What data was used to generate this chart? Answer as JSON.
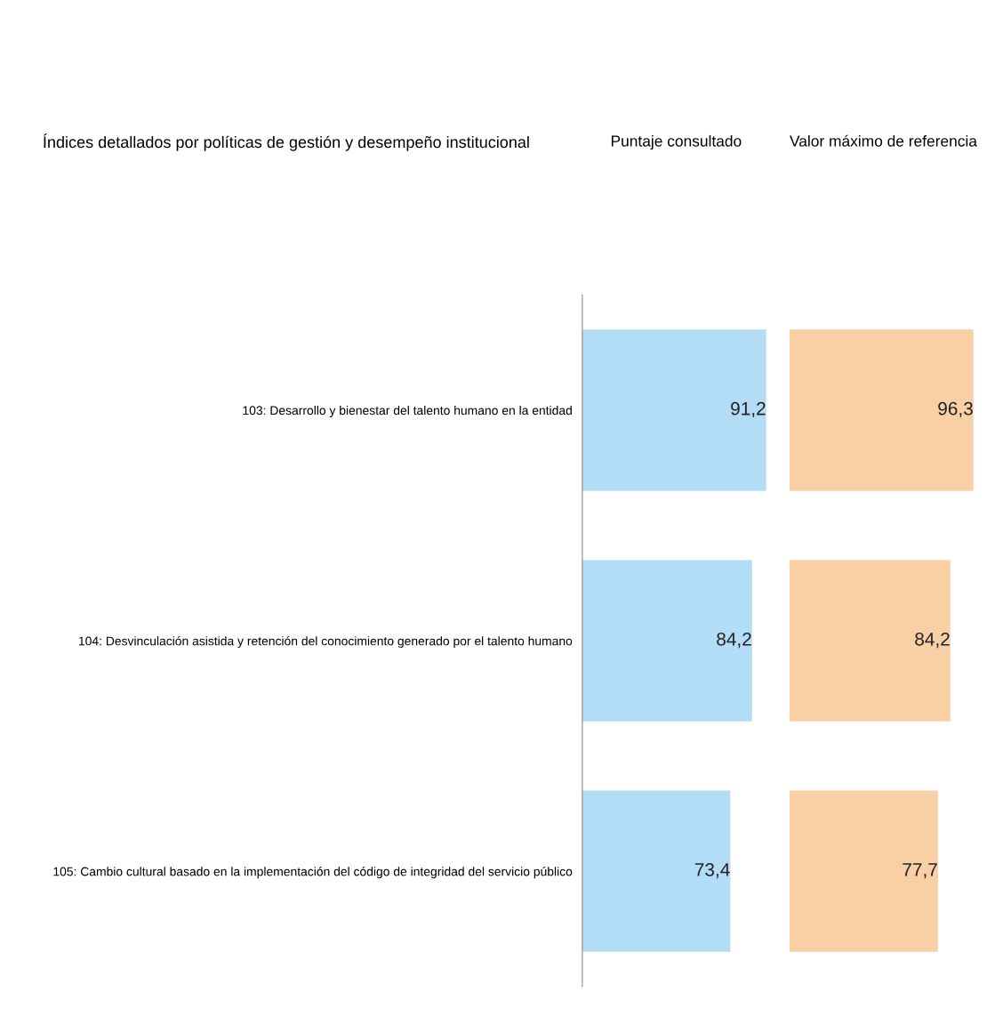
{
  "chart_data": [
    {
      "type": "bar",
      "orientation": "horizontal",
      "title": "Puntaje consultado",
      "ylabel": "Índices detallados por políticas de gestión y desempeño institucional",
      "categories": [
        "103: Desarrollo y bienestar del talento humano en la entidad",
        "104: Desvinculación asistida y retención del conocimiento generado por el talento humano",
        "105: Cambio cultural basado en la implementación del código de integridad del servicio público"
      ],
      "values": [
        91.2,
        84.2,
        73.4
      ],
      "color": "#b3dcf7",
      "value_labels": [
        "91,2",
        "84,2",
        "73,4"
      ],
      "tick_labels": "y",
      "grid": false
    },
    {
      "type": "bar",
      "orientation": "horizontal",
      "title": "Valor máximo de referencia",
      "categories": [
        null,
        null,
        null
      ],
      "values": [
        96.3,
        84.2,
        77.7
      ],
      "color": "#f9cfa6",
      "value_labels": [
        "96,3",
        "84,2",
        "77,7"
      ],
      "tick_labels": false,
      "grid": false
    }
  ]
}
